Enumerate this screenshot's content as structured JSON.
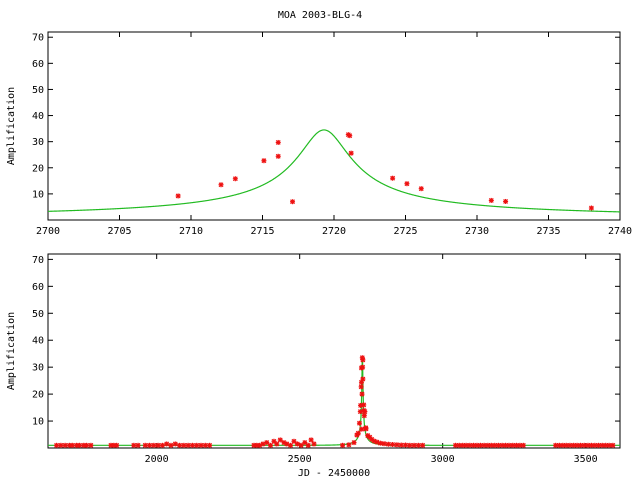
{
  "chart_data": [
    {
      "type": "scatter",
      "title": "MOA 2003-BLG-4",
      "xlabel": "",
      "ylabel": "Amplification",
      "xlim": [
        2700,
        2740
      ],
      "ylim": [
        0,
        72
      ],
      "xticks": [
        2700,
        2705,
        2710,
        2715,
        2720,
        2725,
        2730,
        2735,
        2740
      ],
      "yticks": [
        10,
        20,
        30,
        40,
        50,
        60,
        70
      ],
      "grid": false,
      "series": [
        {
          "kind": "points",
          "color": "#ee1111",
          "points": [
            [
              2709.1,
              9.2
            ],
            [
              2712.1,
              13.5
            ],
            [
              2713.1,
              15.8
            ],
            [
              2715.1,
              22.7
            ],
            [
              2716.1,
              29.7
            ],
            [
              2716.1,
              24.4
            ],
            [
              2717.1,
              7.0
            ],
            [
              2721.0,
              32.7
            ],
            [
              2721.1,
              32.3
            ],
            [
              2721.2,
              25.6
            ],
            [
              2724.1,
              16.0
            ],
            [
              2725.1,
              13.9
            ],
            [
              2726.1,
              12.0
            ],
            [
              2731.0,
              7.5
            ],
            [
              2732.0,
              7.1
            ],
            [
              2738.0,
              4.6
            ]
          ]
        },
        {
          "kind": "model",
          "color": "#22bb22",
          "t0": 2719.3,
          "tE": 62.0,
          "u0": 0.029
        }
      ]
    },
    {
      "type": "scatter",
      "title": "",
      "xlabel": "JD - 2450000",
      "ylabel": "Amplification",
      "xlim": [
        1620,
        3620
      ],
      "ylim": [
        0,
        72
      ],
      "xticks": [
        2000,
        2500,
        3000,
        3500
      ],
      "yticks": [
        10,
        20,
        30,
        40,
        50,
        60,
        70
      ],
      "grid": false,
      "series": [
        {
          "kind": "points",
          "color": "#ee1111",
          "points": [
            [
              1650,
              1.0
            ],
            [
              1665,
              1.0
            ],
            [
              1680,
              1.0
            ],
            [
              1695,
              1.0
            ],
            [
              1705,
              1.0
            ],
            [
              1720,
              1.0
            ],
            [
              1730,
              1.0
            ],
            [
              1745,
              1.0
            ],
            [
              1755,
              1.0
            ],
            [
              1770,
              1.0
            ],
            [
              1840,
              1.0
            ],
            [
              1850,
              1.0
            ],
            [
              1860,
              1.0
            ],
            [
              1920,
              1.0
            ],
            [
              1935,
              1.0
            ],
            [
              1960,
              1.0
            ],
            [
              1975,
              1.0
            ],
            [
              1990,
              1.0
            ],
            [
              2005,
              1.0
            ],
            [
              2020,
              1.0
            ],
            [
              2035,
              1.5
            ],
            [
              2050,
              1.0
            ],
            [
              2065,
              1.5
            ],
            [
              2080,
              1.0
            ],
            [
              2095,
              1.0
            ],
            [
              2110,
              1.0
            ],
            [
              2125,
              1.0
            ],
            [
              2140,
              1.0
            ],
            [
              2155,
              1.0
            ],
            [
              2170,
              1.0
            ],
            [
              2185,
              1.0
            ],
            [
              2340,
              1.0
            ],
            [
              2350,
              1.0
            ],
            [
              2360,
              1.0
            ],
            [
              2372,
              1.5
            ],
            [
              2385,
              2.0
            ],
            [
              2398,
              1.0
            ],
            [
              2410,
              2.5
            ],
            [
              2420,
              1.5
            ],
            [
              2432,
              3.0
            ],
            [
              2445,
              2.0
            ],
            [
              2455,
              1.5
            ],
            [
              2468,
              1.0
            ],
            [
              2480,
              2.5
            ],
            [
              2492,
              1.5
            ],
            [
              2505,
              1.0
            ],
            [
              2518,
              2.0
            ],
            [
              2530,
              1.0
            ],
            [
              2540,
              3.0
            ],
            [
              2550,
              1.5
            ],
            [
              2650,
              1.0
            ],
            [
              2672,
              1.2
            ],
            [
              2690,
              2.0
            ],
            [
              2700,
              4.8
            ],
            [
              2705,
              5.5
            ],
            [
              2709,
              9.2
            ],
            [
              2712,
              13.5
            ],
            [
              2713,
              15.8
            ],
            [
              2715,
              22.7
            ],
            [
              2716,
              29.7
            ],
            [
              2716,
              24.4
            ],
            [
              2717,
              7.0
            ],
            [
              2718,
              20.0
            ],
            [
              2719,
              33.5
            ],
            [
              2720,
              30.0
            ],
            [
              2721,
              32.7
            ],
            [
              2721,
              25.6
            ],
            [
              2724,
              16.0
            ],
            [
              2725,
              13.9
            ],
            [
              2726,
              12.0
            ],
            [
              2728,
              13.5
            ],
            [
              2731,
              7.5
            ],
            [
              2732,
              7.1
            ],
            [
              2738,
              4.6
            ],
            [
              2745,
              4.0
            ],
            [
              2752,
              3.2
            ],
            [
              2760,
              2.6
            ],
            [
              2770,
              2.2
            ],
            [
              2782,
              1.8
            ],
            [
              2795,
              1.6
            ],
            [
              2810,
              1.4
            ],
            [
              2825,
              1.3
            ],
            [
              2840,
              1.2
            ],
            [
              2855,
              1.1
            ],
            [
              2870,
              1.1
            ],
            [
              2885,
              1.0
            ],
            [
              2900,
              1.0
            ],
            [
              2915,
              1.0
            ],
            [
              2930,
              1.0
            ],
            [
              3045,
              1.0
            ],
            [
              3058,
              1.0
            ],
            [
              3070,
              1.0
            ],
            [
              3082,
              1.0
            ],
            [
              3095,
              1.0
            ],
            [
              3108,
              1.0
            ],
            [
              3120,
              1.0
            ],
            [
              3132,
              1.0
            ],
            [
              3145,
              1.0
            ],
            [
              3158,
              1.0
            ],
            [
              3170,
              1.0
            ],
            [
              3182,
              1.0
            ],
            [
              3195,
              1.0
            ],
            [
              3208,
              1.0
            ],
            [
              3220,
              1.0
            ],
            [
              3232,
              1.0
            ],
            [
              3245,
              1.0
            ],
            [
              3258,
              1.0
            ],
            [
              3270,
              1.0
            ],
            [
              3282,
              1.0
            ],
            [
              3395,
              1.0
            ],
            [
              3408,
              1.0
            ],
            [
              3420,
              1.0
            ],
            [
              3432,
              1.0
            ],
            [
              3445,
              1.0
            ],
            [
              3458,
              1.0
            ],
            [
              3470,
              1.0
            ],
            [
              3482,
              1.0
            ],
            [
              3495,
              1.0
            ],
            [
              3508,
              1.0
            ],
            [
              3520,
              1.0
            ],
            [
              3532,
              1.0
            ],
            [
              3545,
              1.0
            ],
            [
              3558,
              1.0
            ],
            [
              3570,
              1.0
            ],
            [
              3582,
              1.0
            ],
            [
              3595,
              1.0
            ]
          ]
        },
        {
          "kind": "model",
          "color": "#22bb22",
          "t0": 2719.3,
          "tE": 62.0,
          "u0": 0.029
        }
      ]
    }
  ]
}
